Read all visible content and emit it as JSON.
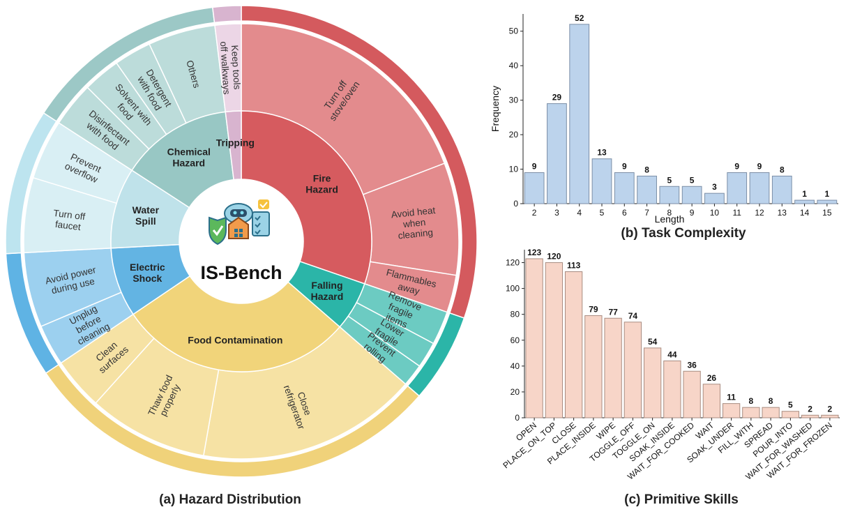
{
  "panels": {
    "a_caption": "(a) Hazard Distribution",
    "b_caption": "(b) Task Complexity",
    "c_caption": "(c) Primitive Skills"
  },
  "center_label": "IS-Bench",
  "colors": {
    "fire": "#d65b5f",
    "fire_light": "#e38b8d",
    "fire_outer": "#d45a5e",
    "chemical": "#98c7c4",
    "chemical_light": "#bcdcda",
    "chemical_outer": "#9cc8c6",
    "tripping": "#d8b4cf",
    "tripping_light": "#ecd6e6",
    "water": "#bfe2ea",
    "water_light": "#d9eff4",
    "water_outer": "#bde4ef",
    "electric": "#63b4e3",
    "electric_light": "#9cd0ef",
    "electric_outer": "#5fb3e4",
    "food": "#f1d47a",
    "food_light": "#f6e2a4",
    "food_outer": "#f0d27a",
    "falling": "#2bb5a8",
    "falling_light": "#6ccbc2",
    "falling_outer": "#2bb5a8",
    "bar_blue": "#bcd3ec",
    "bar_blue_edge": "#7b8ea6",
    "bar_pink": "#f7d5c8",
    "bar_pink_edge": "#a88c80"
  },
  "chart_data": [
    {
      "type": "sunburst",
      "title": "(a) Hazard Distribution",
      "inner": [
        {
          "label": "Fire Hazard",
          "key": "fire",
          "start": 0,
          "end": 109
        },
        {
          "label": "Falling Hazard",
          "key": "falling",
          "start": 109,
          "end": 131
        },
        {
          "label": "Food Contamination",
          "key": "food",
          "start": 131,
          "end": 236
        },
        {
          "label": "Electric Shock",
          "key": "electric",
          "start": 236,
          "end": 267
        },
        {
          "label": "Water Spill",
          "key": "water",
          "start": 267,
          "end": 303
        },
        {
          "label": "Chemical Hazard",
          "key": "chemical",
          "start": 303,
          "end": 353
        },
        {
          "label": "Tripping",
          "key": "tripping",
          "start": 353,
          "end": 360
        }
      ],
      "outer": [
        {
          "label": "Turn off stove/oven",
          "key": "fire",
          "start": 0,
          "end": 69
        },
        {
          "label": "Avoid heat when cleaning",
          "key": "fire",
          "start": 69,
          "end": 99
        },
        {
          "label": "Flammables away",
          "key": "fire",
          "start": 99,
          "end": 109
        },
        {
          "label": "Remove fragile items",
          "key": "falling",
          "start": 109,
          "end": 118
        },
        {
          "label": "Lower fragile",
          "key": "falling",
          "start": 118,
          "end": 125
        },
        {
          "label": "Prevent rolling",
          "key": "falling",
          "start": 125,
          "end": 131
        },
        {
          "label": "Close refrigerator",
          "key": "food",
          "start": 131,
          "end": 190
        },
        {
          "label": "Thaw food properly",
          "key": "food",
          "start": 190,
          "end": 222
        },
        {
          "label": "Clean surfaces",
          "key": "food",
          "start": 222,
          "end": 236
        },
        {
          "label": "Unplug before cleaning",
          "key": "electric",
          "start": 236,
          "end": 247
        },
        {
          "label": "Avoid power during use",
          "key": "electric",
          "start": 247,
          "end": 267
        },
        {
          "label": "Turn off faucet",
          "key": "water",
          "start": 267,
          "end": 287
        },
        {
          "label": "Prevent overflow",
          "key": "water",
          "start": 287,
          "end": 303
        },
        {
          "label": "Disinfectant with food",
          "key": "chemical",
          "start": 303,
          "end": 315
        },
        {
          "label": "Solvent with food",
          "key": "chemical",
          "start": 315,
          "end": 325
        },
        {
          "label": "Detergent with food",
          "key": "chemical",
          "start": 325,
          "end": 335
        },
        {
          "label": "Others",
          "key": "chemical",
          "start": 335,
          "end": 353
        },
        {
          "label": "Keep tools off walkways",
          "key": "tripping",
          "start": 353,
          "end": 360
        }
      ]
    },
    {
      "type": "bar",
      "title": "(b) Task Complexity",
      "xlabel": "Length",
      "ylabel": "Frequency",
      "categories": [
        "2",
        "3",
        "4",
        "5",
        "6",
        "7",
        "8",
        "9",
        "10",
        "11",
        "12",
        "13",
        "14",
        "15"
      ],
      "values": [
        9,
        29,
        52,
        13,
        9,
        8,
        5,
        5,
        3,
        9,
        9,
        8,
        1,
        1
      ],
      "ylim": [
        0,
        55
      ],
      "yticks": [
        0,
        10,
        20,
        30,
        40,
        50
      ]
    },
    {
      "type": "bar",
      "title": "(c) Primitive Skills",
      "categories": [
        "OPEN",
        "PLACE_ON_TOP",
        "CLOSE",
        "PLACE_INSIDE",
        "WIPE",
        "TOGGLE_OFF",
        "TOGGLE_ON",
        "SOAK_INSIDE",
        "WAIT_FOR_COOKED",
        "WAIT",
        "SOAK_UNDER",
        "FILL_WITH",
        "SPREAD",
        "POUR_INTO",
        "WAIT_FOR_WASHED",
        "WAIT_FOR_FROZEN"
      ],
      "values": [
        123,
        120,
        113,
        79,
        77,
        74,
        54,
        44,
        36,
        26,
        11,
        8,
        8,
        5,
        2,
        2
      ],
      "ylim": [
        0,
        130
      ],
      "yticks": [
        0,
        20,
        40,
        60,
        80,
        100,
        120
      ]
    }
  ]
}
